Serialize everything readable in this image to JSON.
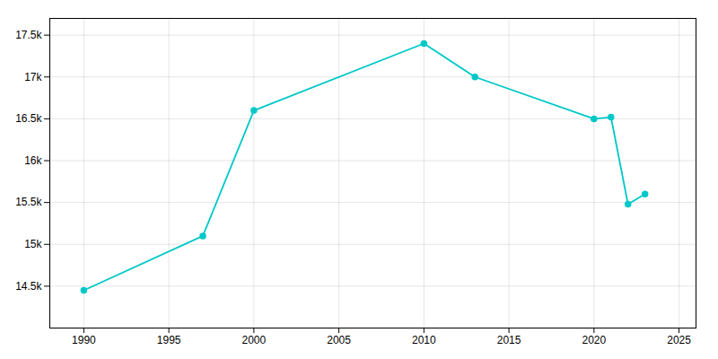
{
  "chart_data": {
    "type": "line",
    "x": [
      1990,
      1997,
      2000,
      2010,
      2013,
      2020,
      2021,
      2022,
      2023
    ],
    "values": [
      14450,
      15100,
      16600,
      17400,
      17000,
      16500,
      16520,
      15480,
      15600
    ],
    "color": "#00C8C8",
    "marker": "circle",
    "line_style": "solid",
    "xlim": [
      1988,
      2026
    ],
    "ylim": [
      14000,
      17700
    ],
    "xticks": [
      1990,
      1995,
      2000,
      2005,
      2010,
      2015,
      2020,
      2025
    ],
    "yticks": [
      {
        "value": 14500,
        "label": "14.5k"
      },
      {
        "value": 15000,
        "label": "15k"
      },
      {
        "value": 15500,
        "label": "15.5k"
      },
      {
        "value": 16000,
        "label": "16k"
      },
      {
        "value": 16500,
        "label": "16.5k"
      },
      {
        "value": 17000,
        "label": "17k"
      },
      {
        "value": 17500,
        "label": "17.5k"
      }
    ],
    "grid": true
  }
}
